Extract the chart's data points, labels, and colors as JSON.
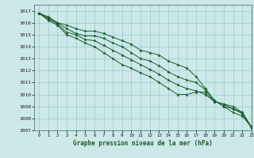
{
  "title": "Graphe pression niveau de la mer (hPa)",
  "bg_color": "#cce8e8",
  "grid_color": "#99cccc",
  "line_color": "#1a5c2a",
  "xlim": [
    -0.5,
    23
  ],
  "ylim": [
    1007,
    1017.5
  ],
  "xticks": [
    0,
    1,
    2,
    3,
    4,
    5,
    6,
    7,
    8,
    9,
    10,
    11,
    12,
    13,
    14,
    15,
    16,
    17,
    18,
    19,
    20,
    21,
    22,
    23
  ],
  "yticks": [
    1007,
    1008,
    1009,
    1010,
    1011,
    1012,
    1013,
    1014,
    1015,
    1016,
    1017
  ],
  "series": [
    [
      1016.8,
      1016.5,
      1016.0,
      1015.8,
      1015.5,
      1015.3,
      1015.3,
      1015.1,
      1014.8,
      1014.5,
      1014.2,
      1013.7,
      1013.5,
      1013.3,
      1012.8,
      1012.5,
      1012.2,
      1011.5,
      1010.5,
      1009.5,
      1009.0,
      1008.5,
      1008.2,
      1007.3
    ],
    [
      1016.8,
      1016.4,
      1016.0,
      1015.5,
      1015.1,
      1014.9,
      1014.9,
      1014.7,
      1014.3,
      1014.0,
      1013.5,
      1013.0,
      1012.8,
      1012.4,
      1011.9,
      1011.5,
      1011.2,
      1011.0,
      1010.4,
      1009.5,
      1009.0,
      1008.8,
      1008.5,
      1007.3
    ],
    [
      1016.8,
      1016.3,
      1015.9,
      1015.2,
      1015.0,
      1014.6,
      1014.5,
      1014.1,
      1013.7,
      1013.3,
      1012.9,
      1012.5,
      1012.1,
      1011.7,
      1011.2,
      1010.8,
      1010.5,
      1010.3,
      1010.0,
      1009.4,
      1009.2,
      1009.0,
      1008.5,
      1007.2
    ],
    [
      1016.8,
      1016.2,
      1015.8,
      1015.0,
      1014.7,
      1014.3,
      1014.0,
      1013.5,
      1013.0,
      1012.5,
      1012.2,
      1011.8,
      1011.5,
      1011.0,
      1010.5,
      1010.0,
      1010.0,
      1010.2,
      1010.2,
      1009.4,
      1009.2,
      1008.8,
      1008.4,
      1007.2
    ]
  ]
}
